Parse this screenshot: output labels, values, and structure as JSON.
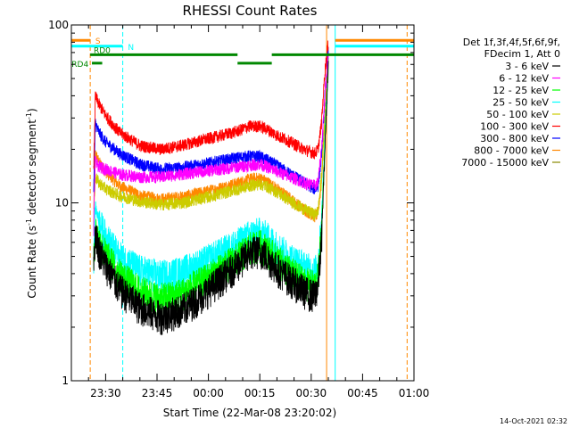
{
  "chart_data": {
    "type": "line",
    "title": "RHESSI Count Rates",
    "xlabel": "Start Time (22-Mar-08 23:20:02)",
    "ylabel_main": "Count Rate (s",
    "ylabel_sup1": "-1",
    "ylabel_mid": " detector segment",
    "ylabel_sup2": "-1",
    "ylabel_end": ")",
    "y_scale": "log",
    "ylim": [
      1,
      100
    ],
    "y_ticks": [
      {
        "value": 1,
        "label": "1"
      },
      {
        "value": 10,
        "label": "10"
      },
      {
        "value": 100,
        "label": "100"
      }
    ],
    "xlim_minutes": [
      0,
      100
    ],
    "x_ticks": [
      {
        "minute": 10,
        "label": "23:30"
      },
      {
        "minute": 25,
        "label": "23:45"
      },
      {
        "minute": 40,
        "label": "00:00"
      },
      {
        "minute": 55,
        "label": "00:15"
      },
      {
        "minute": 70,
        "label": "00:30"
      },
      {
        "minute": 85,
        "label": "00:45"
      },
      {
        "minute": 100,
        "label": "01:00"
      }
    ],
    "legend_header": [
      "Det 1f,3f,4f,5f,6f,9f,",
      "FDecim 1, Att 0"
    ],
    "legend_position": "right",
    "series": [
      {
        "name": "3 - 6 keV",
        "color": "#000000",
        "x": [
          6.5,
          7,
          8,
          10,
          14,
          20,
          26,
          32,
          38,
          44,
          49,
          52,
          55,
          57,
          60,
          64,
          68,
          71,
          72,
          73,
          74,
          75
        ],
        "y": [
          4.3,
          7,
          5.5,
          4.5,
          3.3,
          2.6,
          2.3,
          2.5,
          3,
          3.8,
          4.6,
          5.3,
          5.4,
          5,
          4.3,
          3.7,
          3.2,
          3,
          3.5,
          6,
          20,
          60
        ]
      },
      {
        "name": "6 - 12 keV",
        "color": "#ff00ff",
        "x": [
          6.5,
          7,
          8,
          10,
          14,
          20,
          26,
          32,
          38,
          44,
          49,
          52,
          55,
          57,
          60,
          64,
          68,
          71,
          72,
          73,
          74,
          75
        ],
        "y": [
          8,
          17,
          16,
          15.5,
          14.5,
          14,
          14,
          14.5,
          15,
          15.5,
          16,
          16.3,
          16.5,
          16,
          15,
          14,
          13,
          12.5,
          13,
          20,
          40,
          70
        ]
      },
      {
        "name": "12 - 25 keV",
        "color": "#00ff00",
        "x": [
          6.5,
          7,
          8,
          10,
          14,
          20,
          26,
          32,
          38,
          44,
          49,
          52,
          55,
          57,
          60,
          64,
          68,
          71,
          72,
          73,
          74,
          75
        ],
        "y": [
          4.5,
          7.2,
          6.2,
          5.2,
          4,
          3.2,
          2.9,
          3.1,
          3.6,
          4.3,
          5,
          5.6,
          5.8,
          5.5,
          4.8,
          4.1,
          3.6,
          3.4,
          3.8,
          7,
          22,
          62
        ]
      },
      {
        "name": "25 - 50 keV",
        "color": "#00ffff",
        "x": [
          6.5,
          7,
          8,
          10,
          14,
          20,
          26,
          32,
          38,
          44,
          49,
          52,
          55,
          57,
          60,
          64,
          68,
          71,
          72,
          73,
          74,
          75
        ],
        "y": [
          5,
          9.5,
          8,
          6.5,
          5,
          4.2,
          3.9,
          4.1,
          4.6,
          5.3,
          6,
          6.6,
          6.8,
          6.5,
          5.7,
          4.9,
          4.4,
          4.1,
          4.5,
          8,
          24,
          64
        ]
      },
      {
        "name": "50 - 100 keV",
        "color": "#cccc00",
        "x": [
          6.5,
          7,
          8,
          10,
          14,
          20,
          26,
          32,
          38,
          44,
          49,
          52,
          55,
          57,
          60,
          64,
          68,
          71,
          72,
          73,
          74,
          75
        ],
        "y": [
          8,
          14,
          13,
          12,
          11,
          10.2,
          9.8,
          10,
          10.6,
          11.3,
          12,
          12.5,
          12.8,
          12.4,
          11.5,
          10.2,
          9.2,
          8.6,
          9,
          14,
          30,
          66
        ]
      },
      {
        "name": "100 - 300 keV",
        "color": "#ff0000",
        "x": [
          6.5,
          7,
          8,
          10,
          14,
          20,
          26,
          32,
          38,
          44,
          49,
          52,
          55,
          57,
          60,
          64,
          68,
          71,
          72,
          73,
          74,
          75
        ],
        "y": [
          15,
          40,
          36,
          31,
          25,
          21,
          20,
          21,
          22.5,
          24,
          25.5,
          27,
          27,
          26,
          24,
          22,
          20,
          19,
          20,
          28,
          55,
          80
        ]
      },
      {
        "name": "300 - 800 keV",
        "color": "#0000ff",
        "x": [
          6.5,
          7,
          8,
          10,
          14,
          20,
          26,
          32,
          38,
          44,
          49,
          52,
          55,
          57,
          60,
          64,
          68,
          71,
          72,
          73,
          74,
          75
        ],
        "y": [
          12,
          28,
          25,
          22,
          19,
          16.5,
          15.5,
          15.8,
          16.5,
          17.3,
          18,
          18.3,
          18.2,
          17.5,
          16.2,
          14.5,
          13,
          12,
          12.5,
          18,
          40,
          72
        ]
      },
      {
        "name": "800 - 7000 keV",
        "color": "#ff8800",
        "x": [
          6.5,
          7,
          8,
          10,
          14,
          20,
          26,
          32,
          38,
          44,
          49,
          52,
          55,
          57,
          60,
          64,
          68,
          71,
          72,
          73,
          74,
          75
        ],
        "y": [
          9,
          19,
          17,
          15,
          12.5,
          11,
          10.5,
          10.8,
          11.4,
          12.2,
          13,
          13.6,
          13.8,
          13.2,
          12,
          10.5,
          9.2,
          8.4,
          8.8,
          13,
          30,
          66
        ]
      },
      {
        "name": "7000 - 15000 keV",
        "color": "#888800",
        "x": [],
        "y": []
      }
    ],
    "vertical_lines": [
      {
        "minute": 0,
        "color": "#00ffff",
        "dash": false
      },
      {
        "minute": 5.5,
        "color": "#ff8800",
        "dash": true
      },
      {
        "minute": 15,
        "color": "#00ffff",
        "dash": true
      },
      {
        "minute": 74.5,
        "color": "#ff8800",
        "dash": false
      },
      {
        "minute": 77,
        "color": "#00ffff",
        "dash": false
      },
      {
        "minute": 98,
        "color": "#ff8800",
        "dash": true
      }
    ],
    "state_bars": [
      {
        "label": "S",
        "color": "#ff8800",
        "y_level": 82,
        "segments": [
          [
            0,
            5.5
          ],
          [
            77,
            100
          ]
        ]
      },
      {
        "label": "N",
        "color": "#00ffff",
        "y_level": 76,
        "segments": [
          [
            0,
            15
          ],
          [
            77,
            100
          ]
        ]
      },
      {
        "label": "RD0",
        "color": "#008800",
        "y_level": 68,
        "segments": [
          [
            5.5,
            48.5
          ],
          [
            58.5,
            100
          ]
        ]
      },
      {
        "label": "RD4",
        "color": "#008800",
        "y_level": 61,
        "segments": [
          [
            6,
            9
          ],
          [
            48.5,
            58.5
          ]
        ]
      }
    ]
  },
  "timestamp": "14-Oct-2021 02:32"
}
